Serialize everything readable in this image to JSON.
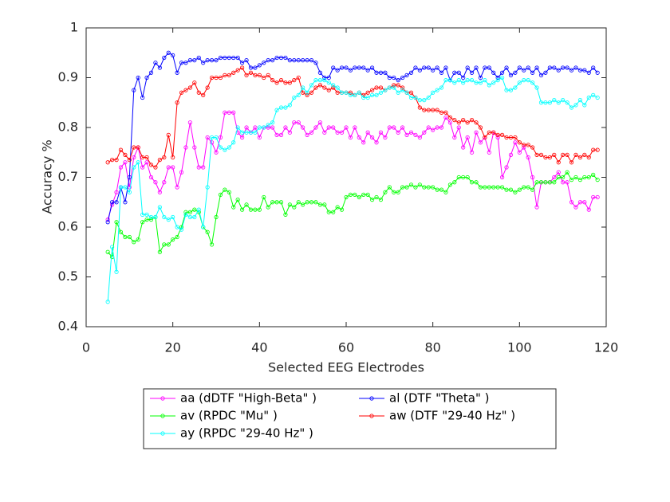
{
  "chart_data": {
    "type": "line",
    "x_label": "Selected EEG Electrodes",
    "y_label": "Accuracy %",
    "xlim": [
      0,
      120
    ],
    "xticks": [
      0,
      20,
      40,
      60,
      80,
      100,
      120
    ],
    "ylim": [
      0.4,
      1
    ],
    "yticks": [
      0.4,
      0.5,
      0.6,
      0.7,
      0.8,
      0.9,
      1
    ],
    "x": [
      5,
      6,
      7,
      8,
      9,
      10,
      11,
      12,
      13,
      14,
      15,
      16,
      17,
      18,
      19,
      20,
      21,
      22,
      23,
      24,
      25,
      26,
      27,
      28,
      29,
      30,
      31,
      32,
      33,
      34,
      35,
      36,
      37,
      38,
      39,
      40,
      41,
      42,
      43,
      44,
      45,
      46,
      47,
      48,
      49,
      50,
      51,
      52,
      53,
      54,
      55,
      56,
      57,
      58,
      59,
      60,
      61,
      62,
      63,
      64,
      65,
      66,
      67,
      68,
      69,
      70,
      71,
      72,
      73,
      74,
      75,
      76,
      77,
      78,
      79,
      80,
      81,
      82,
      83,
      84,
      85,
      86,
      87,
      88,
      89,
      90,
      91,
      92,
      93,
      94,
      95,
      96,
      97,
      98,
      99,
      100,
      101,
      102,
      103,
      104,
      105,
      106,
      107,
      108,
      109,
      110,
      111,
      112,
      113,
      114,
      115,
      116,
      117,
      118
    ],
    "series": [
      {
        "name": "aa (dDTF \"High-Beta\" )",
        "color": "#ff00ff",
        "values": [
          0.615,
          0.645,
          0.67,
          0.72,
          0.73,
          0.68,
          0.74,
          0.76,
          0.72,
          0.73,
          0.7,
          0.69,
          0.67,
          0.69,
          0.72,
          0.72,
          0.68,
          0.71,
          0.76,
          0.81,
          0.76,
          0.72,
          0.72,
          0.78,
          0.77,
          0.75,
          0.78,
          0.83,
          0.83,
          0.83,
          0.79,
          0.78,
          0.8,
          0.79,
          0.8,
          0.78,
          0.8,
          0.8,
          0.8,
          0.785,
          0.785,
          0.8,
          0.79,
          0.81,
          0.81,
          0.8,
          0.785,
          0.79,
          0.8,
          0.81,
          0.79,
          0.8,
          0.8,
          0.79,
          0.79,
          0.8,
          0.78,
          0.8,
          0.78,
          0.77,
          0.79,
          0.78,
          0.77,
          0.79,
          0.78,
          0.8,
          0.8,
          0.79,
          0.8,
          0.785,
          0.79,
          0.785,
          0.78,
          0.79,
          0.8,
          0.795,
          0.8,
          0.8,
          0.82,
          0.81,
          0.78,
          0.8,
          0.76,
          0.78,
          0.75,
          0.79,
          0.77,
          0.78,
          0.75,
          0.79,
          0.78,
          0.7,
          0.72,
          0.745,
          0.77,
          0.75,
          0.76,
          0.74,
          0.7,
          0.64,
          0.69,
          0.69,
          0.69,
          0.7,
          0.71,
          0.69,
          0.69,
          0.65,
          0.64,
          0.65,
          0.65,
          0.635,
          0.66,
          0.66
        ]
      },
      {
        "name": "al (DTF \"Theta\" )",
        "color": "#0000ff",
        "values": [
          0.61,
          0.65,
          0.65,
          0.68,
          0.65,
          0.7,
          0.875,
          0.9,
          0.86,
          0.9,
          0.91,
          0.93,
          0.92,
          0.94,
          0.95,
          0.945,
          0.91,
          0.93,
          0.93,
          0.935,
          0.935,
          0.94,
          0.93,
          0.935,
          0.935,
          0.935,
          0.94,
          0.94,
          0.94,
          0.94,
          0.94,
          0.93,
          0.935,
          0.92,
          0.92,
          0.925,
          0.93,
          0.935,
          0.935,
          0.94,
          0.94,
          0.94,
          0.935,
          0.935,
          0.935,
          0.935,
          0.935,
          0.935,
          0.93,
          0.91,
          0.9,
          0.9,
          0.92,
          0.915,
          0.92,
          0.92,
          0.915,
          0.92,
          0.92,
          0.92,
          0.915,
          0.92,
          0.91,
          0.91,
          0.91,
          0.9,
          0.9,
          0.895,
          0.9,
          0.905,
          0.91,
          0.92,
          0.915,
          0.92,
          0.92,
          0.915,
          0.92,
          0.91,
          0.92,
          0.895,
          0.91,
          0.91,
          0.9,
          0.92,
          0.91,
          0.92,
          0.9,
          0.92,
          0.92,
          0.91,
          0.9,
          0.91,
          0.92,
          0.905,
          0.91,
          0.92,
          0.915,
          0.92,
          0.91,
          0.92,
          0.905,
          0.91,
          0.92,
          0.92,
          0.915,
          0.92,
          0.92,
          0.915,
          0.92,
          0.915,
          0.915,
          0.91,
          0.92,
          0.91
        ]
      },
      {
        "name": "av (RPDC \"Mu\" )",
        "color": "#00ff00",
        "values": [
          0.55,
          0.54,
          0.61,
          0.59,
          0.58,
          0.58,
          0.57,
          0.575,
          0.61,
          0.615,
          0.615,
          0.62,
          0.55,
          0.565,
          0.565,
          0.575,
          0.58,
          0.6,
          0.63,
          0.63,
          0.635,
          0.63,
          0.6,
          0.59,
          0.565,
          0.62,
          0.665,
          0.675,
          0.67,
          0.64,
          0.655,
          0.635,
          0.645,
          0.635,
          0.635,
          0.635,
          0.66,
          0.64,
          0.65,
          0.65,
          0.65,
          0.625,
          0.645,
          0.64,
          0.65,
          0.645,
          0.65,
          0.65,
          0.65,
          0.645,
          0.645,
          0.63,
          0.63,
          0.64,
          0.635,
          0.66,
          0.665,
          0.665,
          0.66,
          0.665,
          0.665,
          0.655,
          0.66,
          0.655,
          0.67,
          0.68,
          0.67,
          0.67,
          0.68,
          0.68,
          0.685,
          0.68,
          0.685,
          0.68,
          0.68,
          0.68,
          0.675,
          0.675,
          0.67,
          0.685,
          0.69,
          0.7,
          0.7,
          0.7,
          0.69,
          0.69,
          0.68,
          0.68,
          0.68,
          0.68,
          0.68,
          0.68,
          0.675,
          0.675,
          0.67,
          0.675,
          0.68,
          0.68,
          0.675,
          0.69,
          0.69,
          0.69,
          0.69,
          0.69,
          0.7,
          0.7,
          0.71,
          0.695,
          0.7,
          0.695,
          0.7,
          0.7,
          0.705,
          0.695
        ]
      },
      {
        "name": "aw (DTF \"29-40 Hz\" )",
        "color": "#ff0000",
        "values": [
          0.73,
          0.735,
          0.735,
          0.755,
          0.745,
          0.735,
          0.76,
          0.76,
          0.74,
          0.74,
          0.725,
          0.72,
          0.735,
          0.74,
          0.785,
          0.74,
          0.85,
          0.87,
          0.875,
          0.88,
          0.89,
          0.87,
          0.865,
          0.88,
          0.9,
          0.9,
          0.9,
          0.905,
          0.905,
          0.91,
          0.915,
          0.92,
          0.905,
          0.91,
          0.905,
          0.905,
          0.9,
          0.905,
          0.895,
          0.89,
          0.895,
          0.89,
          0.89,
          0.895,
          0.9,
          0.87,
          0.865,
          0.87,
          0.88,
          0.885,
          0.88,
          0.875,
          0.88,
          0.87,
          0.87,
          0.87,
          0.87,
          0.865,
          0.87,
          0.865,
          0.87,
          0.875,
          0.88,
          0.88,
          0.875,
          0.88,
          0.885,
          0.885,
          0.88,
          0.87,
          0.87,
          0.86,
          0.84,
          0.835,
          0.835,
          0.835,
          0.835,
          0.83,
          0.83,
          0.82,
          0.815,
          0.81,
          0.815,
          0.81,
          0.815,
          0.81,
          0.8,
          0.78,
          0.79,
          0.79,
          0.785,
          0.785,
          0.78,
          0.78,
          0.78,
          0.77,
          0.765,
          0.765,
          0.76,
          0.745,
          0.745,
          0.74,
          0.74,
          0.745,
          0.73,
          0.745,
          0.745,
          0.73,
          0.745,
          0.74,
          0.745,
          0.74,
          0.755,
          0.755
        ]
      },
      {
        "name": "ay (RPDC \"29-40 Hz\" )",
        "color": "#00ffff",
        "values": [
          0.45,
          0.56,
          0.51,
          0.68,
          0.68,
          0.67,
          0.72,
          0.73,
          0.625,
          0.625,
          0.62,
          0.62,
          0.64,
          0.62,
          0.615,
          0.62,
          0.6,
          0.595,
          0.625,
          0.62,
          0.62,
          0.635,
          0.6,
          0.68,
          0.78,
          0.78,
          0.76,
          0.755,
          0.76,
          0.77,
          0.8,
          0.79,
          0.79,
          0.79,
          0.79,
          0.8,
          0.8,
          0.805,
          0.81,
          0.835,
          0.84,
          0.84,
          0.845,
          0.86,
          0.865,
          0.88,
          0.87,
          0.885,
          0.895,
          0.895,
          0.895,
          0.89,
          0.885,
          0.88,
          0.87,
          0.87,
          0.865,
          0.865,
          0.87,
          0.86,
          0.86,
          0.865,
          0.865,
          0.87,
          0.875,
          0.88,
          0.88,
          0.87,
          0.875,
          0.87,
          0.86,
          0.86,
          0.855,
          0.855,
          0.86,
          0.87,
          0.875,
          0.88,
          0.895,
          0.895,
          0.89,
          0.895,
          0.89,
          0.895,
          0.895,
          0.89,
          0.89,
          0.895,
          0.885,
          0.89,
          0.895,
          0.9,
          0.875,
          0.875,
          0.88,
          0.89,
          0.895,
          0.895,
          0.89,
          0.88,
          0.85,
          0.85,
          0.85,
          0.855,
          0.85,
          0.855,
          0.85,
          0.84,
          0.845,
          0.855,
          0.845,
          0.86,
          0.865,
          0.86
        ]
      }
    ]
  }
}
